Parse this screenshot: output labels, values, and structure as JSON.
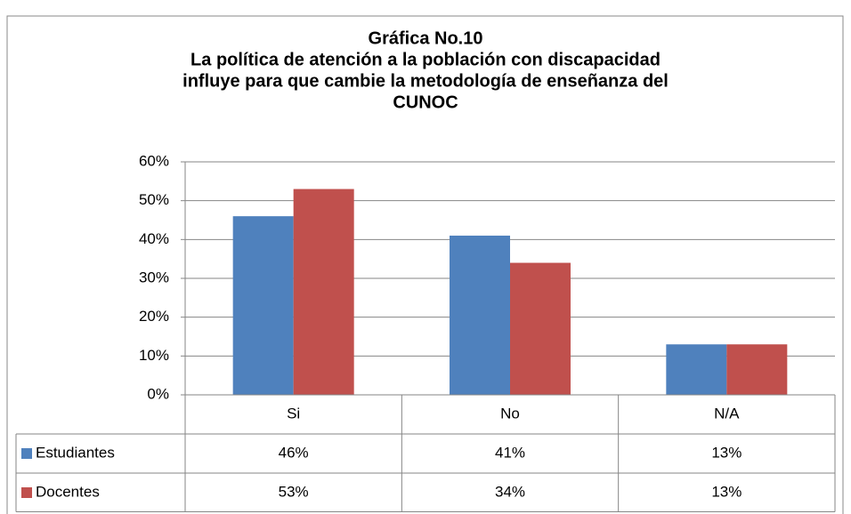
{
  "chart_data": {
    "type": "bar",
    "title": [
      "Gráfica No.10",
      "La política de atención a la población con discapacidad",
      "influye para que cambie la metodología de enseñanza del",
      "CUNOC"
    ],
    "categories": [
      "Si",
      "No",
      "N/A"
    ],
    "series": [
      {
        "name": "Estudiantes",
        "color": "#4f81bd",
        "values": [
          46,
          41,
          13
        ],
        "value_labels": [
          "46%",
          "41%",
          "13%"
        ]
      },
      {
        "name": "Docentes",
        "color": "#c0504d",
        "values": [
          53,
          34,
          13
        ],
        "value_labels": [
          "53%",
          "34%",
          "13%"
        ]
      }
    ],
    "ylim": [
      0,
      60
    ],
    "yticks": [
      {
        "value": 0,
        "label": "0%"
      },
      {
        "value": 10,
        "label": "10%"
      },
      {
        "value": 20,
        "label": "20%"
      },
      {
        "value": 30,
        "label": "30%"
      },
      {
        "value": 40,
        "label": "40%"
      },
      {
        "value": 50,
        "label": "50%"
      },
      {
        "value": 60,
        "label": "60%"
      }
    ],
    "grid": true
  }
}
